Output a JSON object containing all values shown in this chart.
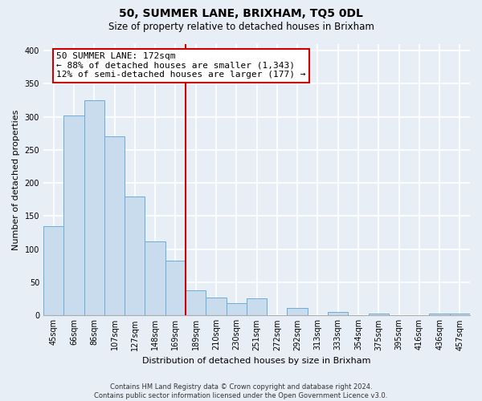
{
  "title": "50, SUMMER LANE, BRIXHAM, TQ5 0DL",
  "subtitle": "Size of property relative to detached houses in Brixham",
  "xlabel": "Distribution of detached houses by size in Brixham",
  "ylabel": "Number of detached properties",
  "bar_labels": [
    "45sqm",
    "66sqm",
    "86sqm",
    "107sqm",
    "127sqm",
    "148sqm",
    "169sqm",
    "189sqm",
    "210sqm",
    "230sqm",
    "251sqm",
    "272sqm",
    "292sqm",
    "313sqm",
    "333sqm",
    "354sqm",
    "375sqm",
    "395sqm",
    "416sqm",
    "436sqm",
    "457sqm"
  ],
  "bar_values": [
    135,
    302,
    325,
    270,
    180,
    111,
    83,
    37,
    27,
    18,
    25,
    0,
    11,
    0,
    5,
    0,
    2,
    0,
    0,
    3,
    2
  ],
  "bar_color": "#c8dced",
  "bar_edge_color": "#6aadd5",
  "vline_pos": 6.5,
  "vline_color": "#cc0000",
  "annotation_text_line1": "50 SUMMER LANE: 172sqm",
  "annotation_text_line2": "← 88% of detached houses are smaller (1,343)",
  "annotation_text_line3": "12% of semi-detached houses are larger (177) →",
  "annotation_box_color": "#ffffff",
  "annotation_box_edge": "#cc0000",
  "ylim": [
    0,
    410
  ],
  "yticks": [
    0,
    50,
    100,
    150,
    200,
    250,
    300,
    350,
    400
  ],
  "footer1": "Contains HM Land Registry data © Crown copyright and database right 2024.",
  "footer2": "Contains public sector information licensed under the Open Government Licence v3.0.",
  "bg_color": "#e8eef6",
  "grid_color": "#ffffff",
  "title_fontsize": 10,
  "subtitle_fontsize": 8.5,
  "axis_label_fontsize": 8,
  "tick_fontsize": 7,
  "annotation_fontsize": 8,
  "footer_fontsize": 6
}
